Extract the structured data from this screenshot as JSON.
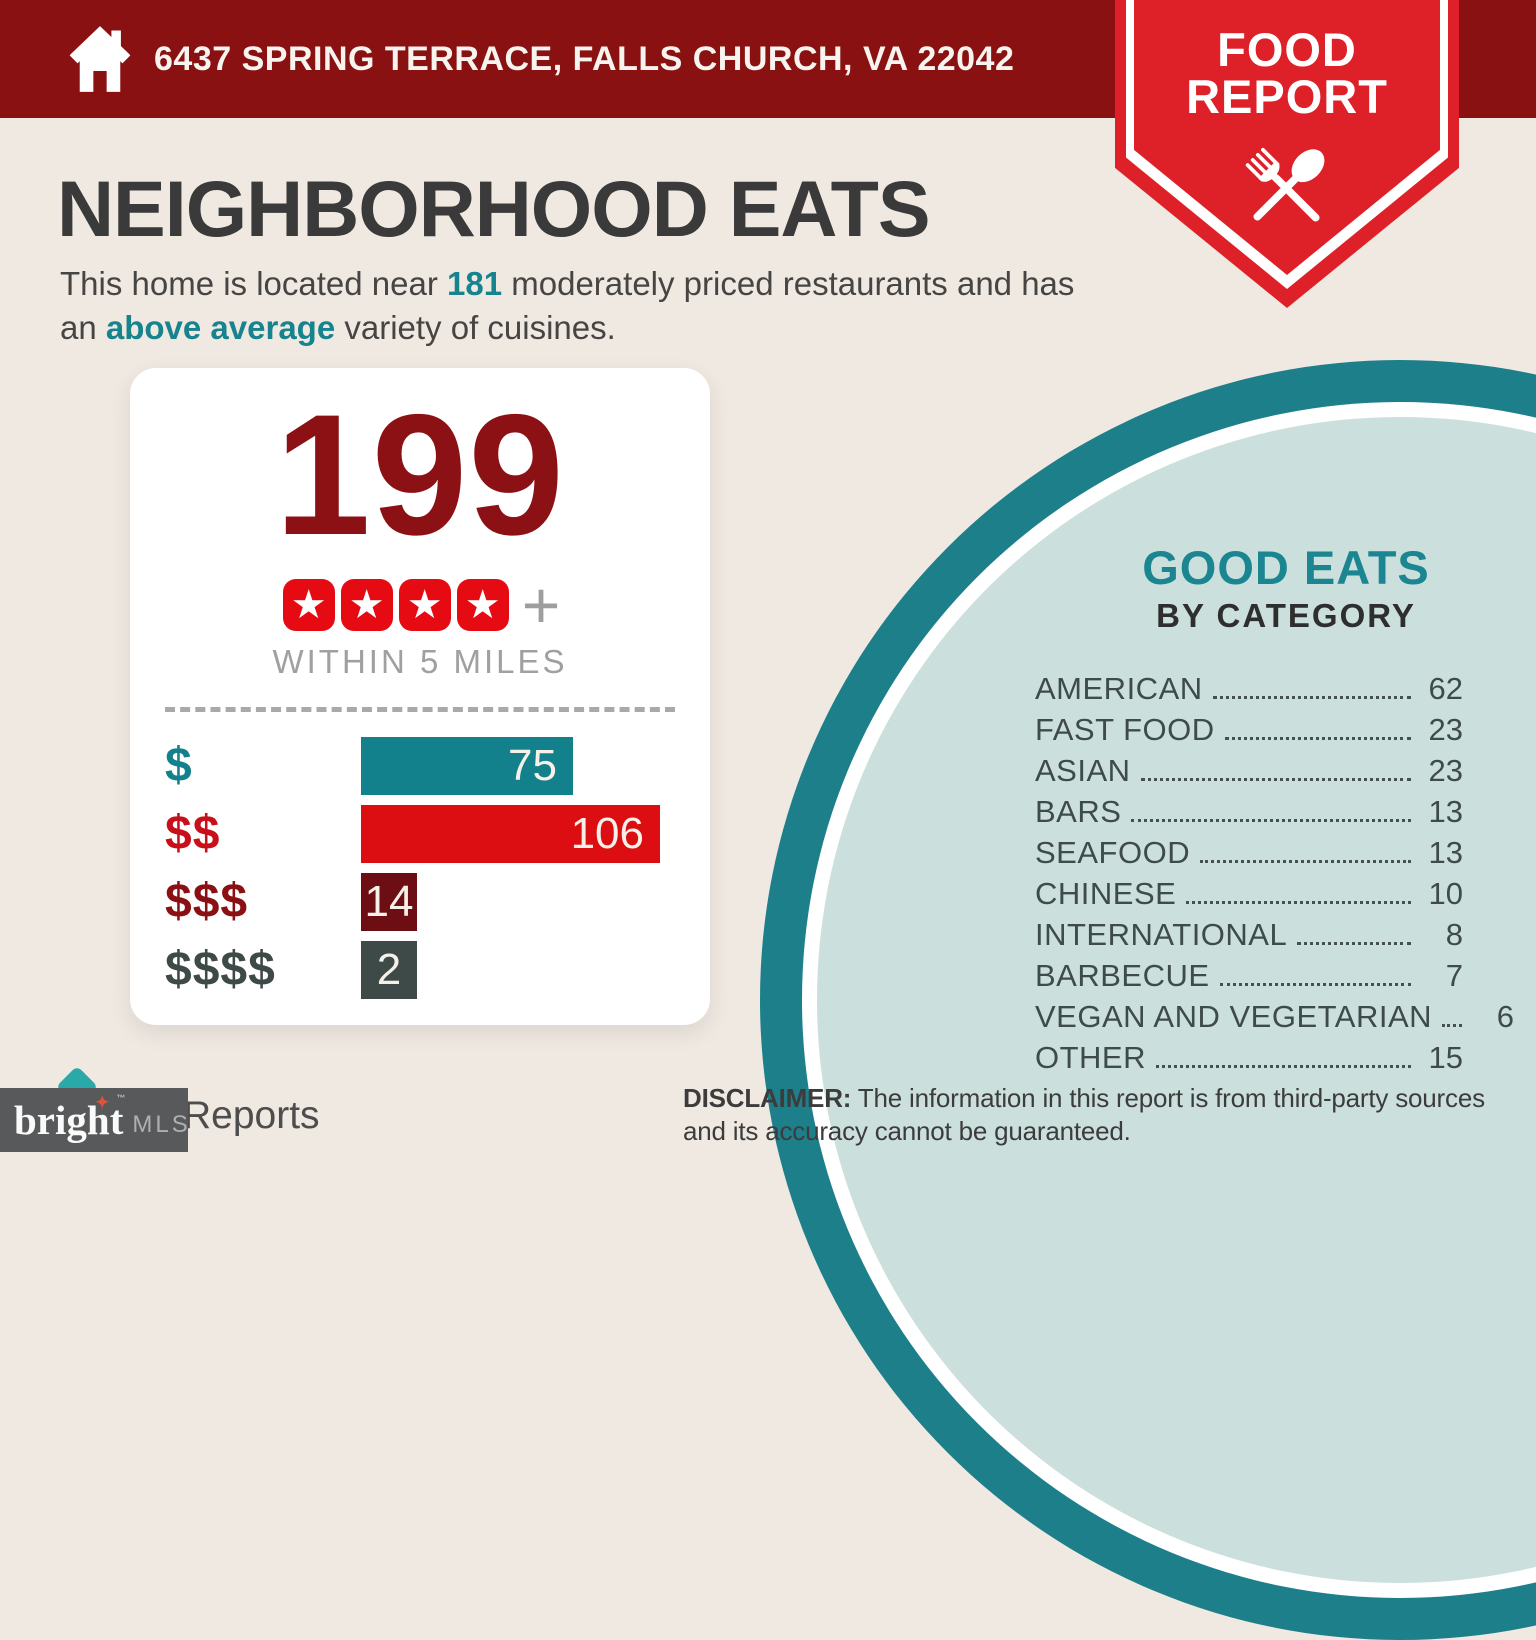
{
  "header": {
    "address": "6437 SPRING TERRACE, FALLS CHURCH, VA 22042"
  },
  "badge": {
    "line1": "FOOD",
    "line2": "REPORT"
  },
  "page": {
    "title": "NEIGHBORHOOD EATS",
    "intro_prefix": "This home is located near ",
    "intro_count": "181",
    "intro_mid": " moderately priced restaurants and has an ",
    "intro_highlight": "above average",
    "intro_suffix": " variety of cuisines."
  },
  "summary": {
    "count": "199",
    "star_count": 4,
    "plus": "+",
    "caption": "WITHIN 5 MILES"
  },
  "chart_data": {
    "type": "bar",
    "orientation": "horizontal",
    "categories": [
      "$",
      "$$",
      "$$$",
      "$$$$"
    ],
    "values": [
      75,
      106,
      14,
      2
    ],
    "bar_colors": [
      "#12818B",
      "#DC0E12",
      "#6C0E13",
      "#3E4A48"
    ],
    "label_colors": [
      "#12818B",
      "#C8101A",
      "#8A1014",
      "#3E4A48"
    ],
    "xlim": [
      0,
      106
    ],
    "grid": false,
    "value_labels": "inside-end"
  },
  "good_eats": {
    "title": "GOOD EATS",
    "subtitle": "BY CATEGORY",
    "items": [
      {
        "label": "AMERICAN",
        "value": 62
      },
      {
        "label": "FAST FOOD",
        "value": 23
      },
      {
        "label": "ASIAN",
        "value": 23
      },
      {
        "label": "BARS",
        "value": 13
      },
      {
        "label": "SEAFOOD",
        "value": 13
      },
      {
        "label": "CHINESE",
        "value": 10
      },
      {
        "label": "INTERNATIONAL",
        "value": 8
      },
      {
        "label": "BARBECUE",
        "value": 7
      },
      {
        "label": "VEGAN AND VEGETARIAN",
        "value": 6
      },
      {
        "label": "OTHER",
        "value": 15
      }
    ]
  },
  "footer": {
    "disclaimer_label": "DISCLAIMER:",
    "disclaimer_text": " The information in this report is from third-party sources and its accuracy cannot be guaranteed.",
    "partial_logo_text": "Reports",
    "watermark_brand": "bright",
    "watermark_tm": "™",
    "watermark_suffix": "MLS"
  },
  "colors": {
    "header_red": "#8A1111",
    "ribbon_red": "#DE2128",
    "accent_teal": "#16838F",
    "circle_teal": "#1D7F8A",
    "circle_mint": "#CBE0DC",
    "count_red": "#8C1115",
    "star_red": "#E60A12",
    "background_cream": "#EFE9E2"
  }
}
